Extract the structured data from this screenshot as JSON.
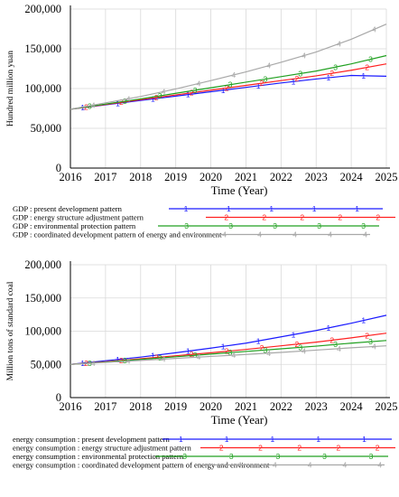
{
  "chart_data": [
    {
      "type": "line",
      "title": "",
      "xlabel": "Time (Year)",
      "ylabel": "Hundred million yuan",
      "xlim": [
        2016,
        2025
      ],
      "ylim": [
        0,
        200000
      ],
      "x_ticks": [
        "2016",
        "2017",
        "2018",
        "2019",
        "2020",
        "2021",
        "2022",
        "2023",
        "2024",
        "2025"
      ],
      "y_ticks": [
        "0",
        "50,000",
        "100,000",
        "150,000",
        "200,000"
      ],
      "grid": true,
      "legend_position": "bottom",
      "x": [
        2016,
        2017,
        2018,
        2019,
        2020,
        2021,
        2022,
        2023,
        2024,
        2025
      ],
      "series": [
        {
          "name": "GDP : present development pattern",
          "marker": "1",
          "color": "#1a1aff",
          "values": [
            74000,
            79500,
            85000,
            90500,
            96000,
            101500,
            107000,
            112000,
            116500,
            115500
          ]
        },
        {
          "name": "GDP : energy structure adjustment pattern",
          "marker": "2",
          "color": "#ff2020",
          "values": [
            74000,
            80000,
            86000,
            92000,
            98000,
            104000,
            110000,
            116000,
            123000,
            131000
          ]
        },
        {
          "name": "GDP : environmental protection pattern",
          "marker": "3",
          "color": "#20a020",
          "values": [
            74000,
            80500,
            87000,
            94000,
            101000,
            108000,
            115000,
            122000,
            131000,
            141500
          ]
        },
        {
          "name": "GDP : coordinated development pattern of energy and environment",
          "marker": "4",
          "color": "#a8a8a8",
          "values": [
            74000,
            82000,
            90000,
            99500,
            110000,
            121000,
            133000,
            146000,
            162000,
            181000
          ]
        }
      ]
    },
    {
      "type": "line",
      "title": "",
      "xlabel": "Time (Year)",
      "ylabel": "Million tons of standard coal",
      "xlim": [
        2016,
        2025
      ],
      "ylim": [
        0,
        200000
      ],
      "x_ticks": [
        "2016",
        "2017",
        "2018",
        "2019",
        "2020",
        "2021",
        "2022",
        "2023",
        "2024",
        "2025"
      ],
      "y_ticks": [
        "0",
        "50,000",
        "100,000",
        "150,000",
        "200,000"
      ],
      "grid": true,
      "legend_position": "bottom",
      "x": [
        2016,
        2017,
        2018,
        2019,
        2020,
        2021,
        2022,
        2023,
        2024,
        2025
      ],
      "series": [
        {
          "name": "energy consumption : present development pattern",
          "marker": "1",
          "color": "#1a1aff",
          "values": [
            50000,
            55500,
            61000,
            67500,
            74500,
            82000,
            91500,
            101000,
            112000,
            124000
          ]
        },
        {
          "name": "energy consumption : energy structure adjustment pattern",
          "marker": "2",
          "color": "#ff2020",
          "values": [
            50000,
            54000,
            58500,
            63000,
            67500,
            72500,
            78000,
            83500,
            90000,
            97000
          ]
        },
        {
          "name": "energy consumption : environmental protection pattern",
          "marker": "3",
          "color": "#20a020",
          "values": [
            50000,
            53500,
            57500,
            61500,
            65500,
            69500,
            73500,
            77500,
            82000,
            86000
          ]
        },
        {
          "name": "energy consumption : coordinated development pattern of energy and environment",
          "marker": "4",
          "color": "#a8a8a8",
          "values": [
            50000,
            53000,
            56000,
            59000,
            62000,
            65000,
            68000,
            71500,
            75000,
            78000
          ]
        }
      ]
    }
  ]
}
